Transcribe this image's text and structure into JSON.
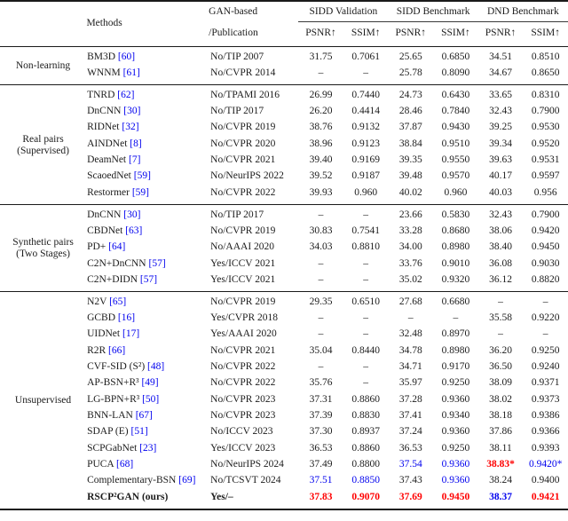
{
  "table": {
    "header": {
      "methods": "Methods",
      "gan_line1": "GAN-based",
      "gan_line2": "/Publication",
      "groups": [
        "SIDD Validation",
        "SIDD Benchmark",
        "DND Benchmark"
      ],
      "metrics": [
        "PSNR↑",
        "SSIM↑",
        "PSNR↑",
        "SSIM↑",
        "PSNR↑",
        "SSIM↑"
      ]
    },
    "colors": {
      "best_red": "#ff0000",
      "second_blue": "#0000ee",
      "citation_blue": "#0000ee"
    },
    "sections": [
      {
        "label": "Non-learning",
        "rows": [
          {
            "method": "BM3D",
            "cite": "[60]",
            "pub": "No/TIP 2007",
            "vals": [
              {
                "t": "31.75"
              },
              {
                "t": "0.7061"
              },
              {
                "t": "25.65"
              },
              {
                "t": "0.6850"
              },
              {
                "t": "34.51"
              },
              {
                "t": "0.8510"
              }
            ]
          },
          {
            "method": "WNNM",
            "cite": "[61]",
            "pub": "No/CVPR 2014",
            "vals": [
              {
                "t": "–"
              },
              {
                "t": "–"
              },
              {
                "t": "25.78"
              },
              {
                "t": "0.8090"
              },
              {
                "t": "34.67"
              },
              {
                "t": "0.8650"
              }
            ]
          }
        ]
      },
      {
        "label": "Real pairs\n(Supervised)",
        "rows": [
          {
            "method": "TNRD",
            "cite": "[62]",
            "pub": "No/TPAMI 2016",
            "vals": [
              {
                "t": "26.99"
              },
              {
                "t": "0.7440"
              },
              {
                "t": "24.73"
              },
              {
                "t": "0.6430"
              },
              {
                "t": "33.65"
              },
              {
                "t": "0.8310"
              }
            ]
          },
          {
            "method": "DnCNN",
            "cite": "[30]",
            "pub": "No/TIP 2017",
            "vals": [
              {
                "t": "26.20"
              },
              {
                "t": "0.4414"
              },
              {
                "t": "28.46"
              },
              {
                "t": "0.7840"
              },
              {
                "t": "32.43"
              },
              {
                "t": "0.7900"
              }
            ]
          },
          {
            "method": "RIDNet",
            "cite": "[32]",
            "pub": "No/CVPR 2019",
            "vals": [
              {
                "t": "38.76"
              },
              {
                "t": "0.9132"
              },
              {
                "t": "37.87"
              },
              {
                "t": "0.9430"
              },
              {
                "t": "39.25"
              },
              {
                "t": "0.9530"
              }
            ]
          },
          {
            "method": "AINDNet",
            "cite": "[8]",
            "pub": "No/CVPR 2020",
            "vals": [
              {
                "t": "38.96"
              },
              {
                "t": "0.9123"
              },
              {
                "t": "38.84"
              },
              {
                "t": "0.9510"
              },
              {
                "t": "39.34"
              },
              {
                "t": "0.9520"
              }
            ]
          },
          {
            "method": "DeamNet",
            "cite": "[7]",
            "pub": "No/CVPR 2021",
            "vals": [
              {
                "t": "39.40"
              },
              {
                "t": "0.9169"
              },
              {
                "t": "39.35"
              },
              {
                "t": "0.9550"
              },
              {
                "t": "39.63"
              },
              {
                "t": "0.9531"
              }
            ]
          },
          {
            "method": "ScaoedNet",
            "cite": "[59]",
            "pub": "No/NeurIPS 2022",
            "vals": [
              {
                "t": "39.52"
              },
              {
                "t": "0.9187"
              },
              {
                "t": "39.48"
              },
              {
                "t": "0.9570"
              },
              {
                "t": "40.17"
              },
              {
                "t": "0.9597"
              }
            ]
          },
          {
            "method": "Restormer",
            "cite": "[59]",
            "pub": "No/CVPR 2022",
            "vals": [
              {
                "t": "39.93"
              },
              {
                "t": "0.960"
              },
              {
                "t": "40.02"
              },
              {
                "t": "0.960"
              },
              {
                "t": "40.03"
              },
              {
                "t": "0.956"
              }
            ]
          }
        ]
      },
      {
        "label": "Synthetic pairs\n(Two Stages)",
        "rows": [
          {
            "method": "DnCNN",
            "cite": "[30]",
            "pub": "No/TIP 2017",
            "vals": [
              {
                "t": "–"
              },
              {
                "t": "–"
              },
              {
                "t": "23.66"
              },
              {
                "t": "0.5830"
              },
              {
                "t": "32.43"
              },
              {
                "t": "0.7900"
              }
            ]
          },
          {
            "method": "CBDNet",
            "cite": "[63]",
            "pub": "No/CVPR 2019",
            "vals": [
              {
                "t": "30.83"
              },
              {
                "t": "0.7541"
              },
              {
                "t": "33.28"
              },
              {
                "t": "0.8680"
              },
              {
                "t": "38.06"
              },
              {
                "t": "0.9420"
              }
            ]
          },
          {
            "method": "PD+",
            "cite": "[64]",
            "pub": "No/AAAI 2020",
            "vals": [
              {
                "t": "34.03"
              },
              {
                "t": "0.8810"
              },
              {
                "t": "34.00"
              },
              {
                "t": "0.8980"
              },
              {
                "t": "38.40"
              },
              {
                "t": "0.9450"
              }
            ]
          },
          {
            "method": "C2N+DnCNN",
            "cite": "[57]",
            "pub": "Yes/ICCV 2021",
            "vals": [
              {
                "t": "–"
              },
              {
                "t": "–"
              },
              {
                "t": "33.76"
              },
              {
                "t": "0.9010"
              },
              {
                "t": "36.08"
              },
              {
                "t": "0.9030"
              }
            ]
          },
          {
            "method": "C2N+DIDN",
            "cite": "[57]",
            "pub": "Yes/ICCV 2021",
            "vals": [
              {
                "t": "–"
              },
              {
                "t": "–"
              },
              {
                "t": "35.02"
              },
              {
                "t": "0.9320"
              },
              {
                "t": "36.12"
              },
              {
                "t": "0.8820"
              }
            ]
          }
        ]
      },
      {
        "label": "Unsupervised",
        "rows": [
          {
            "method": "N2V",
            "cite": "[65]",
            "pub": "No/CVPR 2019",
            "vals": [
              {
                "t": "29.35"
              },
              {
                "t": "0.6510"
              },
              {
                "t": "27.68"
              },
              {
                "t": "0.6680"
              },
              {
                "t": "–"
              },
              {
                "t": "–"
              }
            ]
          },
          {
            "method": "GCBD",
            "cite": "[16]",
            "pub": "Yes/CVPR 2018",
            "vals": [
              {
                "t": "–"
              },
              {
                "t": "–"
              },
              {
                "t": "–"
              },
              {
                "t": "–"
              },
              {
                "t": "35.58"
              },
              {
                "t": "0.9220"
              }
            ]
          },
          {
            "method": "UIDNet",
            "cite": "[17]",
            "pub": "Yes/AAAI 2020",
            "vals": [
              {
                "t": "–"
              },
              {
                "t": "–"
              },
              {
                "t": "32.48"
              },
              {
                "t": "0.8970"
              },
              {
                "t": "–"
              },
              {
                "t": "–"
              }
            ]
          },
          {
            "method": "R2R",
            "cite": "[66]",
            "pub": "No/CVPR 2021",
            "vals": [
              {
                "t": "35.04"
              },
              {
                "t": "0.8440"
              },
              {
                "t": "34.78"
              },
              {
                "t": "0.8980"
              },
              {
                "t": "36.20"
              },
              {
                "t": "0.9250"
              }
            ]
          },
          {
            "method": "CVF-SID (S²)",
            "cite": "[48]",
            "pub": "No/CVPR 2022",
            "vals": [
              {
                "t": "–"
              },
              {
                "t": "–"
              },
              {
                "t": "34.71"
              },
              {
                "t": "0.9170"
              },
              {
                "t": "36.50"
              },
              {
                "t": "0.9240"
              }
            ]
          },
          {
            "method": "AP-BSN+R³",
            "cite": "[49]",
            "pub": "No/CVPR 2022",
            "vals": [
              {
                "t": "35.76"
              },
              {
                "t": "–"
              },
              {
                "t": "35.97"
              },
              {
                "t": "0.9250"
              },
              {
                "t": "38.09"
              },
              {
                "t": "0.9371"
              }
            ]
          },
          {
            "method": "LG-BPN+R³",
            "cite": "[50]",
            "pub": "No/CVPR 2023",
            "vals": [
              {
                "t": "37.31"
              },
              {
                "t": "0.8860"
              },
              {
                "t": "37.28"
              },
              {
                "t": "0.9360"
              },
              {
                "t": "38.02"
              },
              {
                "t": "0.9373"
              }
            ]
          },
          {
            "method": "BNN-LAN",
            "cite": "[67]",
            "pub": "No/CVPR 2023",
            "vals": [
              {
                "t": "37.39"
              },
              {
                "t": "0.8830"
              },
              {
                "t": "37.41"
              },
              {
                "t": "0.9340"
              },
              {
                "t": "38.18"
              },
              {
                "t": "0.9386"
              }
            ]
          },
          {
            "method": "SDAP (E)",
            "cite": "[51]",
            "pub": "No/ICCV 2023",
            "vals": [
              {
                "t": "37.30"
              },
              {
                "t": "0.8937"
              },
              {
                "t": "37.24"
              },
              {
                "t": "0.9360"
              },
              {
                "t": "37.86"
              },
              {
                "t": "0.9366"
              }
            ]
          },
          {
            "method": "SCPGabNet",
            "cite": "[23]",
            "pub": "Yes/ICCV 2023",
            "vals": [
              {
                "t": "36.53"
              },
              {
                "t": "0.8860"
              },
              {
                "t": "36.53"
              },
              {
                "t": "0.9250"
              },
              {
                "t": "38.11"
              },
              {
                "t": "0.9393"
              }
            ]
          },
          {
            "method": "PUCA",
            "cite": "[68]",
            "pub": "No/NeurIPS 2024",
            "vals": [
              {
                "t": "37.49"
              },
              {
                "t": "0.8800"
              },
              {
                "t": "37.54",
                "c": "blue"
              },
              {
                "t": "0.9360",
                "c": "blue"
              },
              {
                "t": "38.83*",
                "c": "red",
                "b": true
              },
              {
                "t": "0.9420*",
                "c": "blue"
              }
            ]
          },
          {
            "method": "Complementary-BSN",
            "cite": "[69]",
            "pub": "No/TCSVT 2024",
            "vals": [
              {
                "t": "37.51",
                "c": "blue"
              },
              {
                "t": "0.8850",
                "c": "blue"
              },
              {
                "t": "37.43"
              },
              {
                "t": "0.9360",
                "c": "blue"
              },
              {
                "t": "38.24"
              },
              {
                "t": "0.9400"
              }
            ]
          },
          {
            "method": "RSCP²GAN (ours)",
            "cite": "",
            "pub": "Yes/–",
            "bold": true,
            "vals": [
              {
                "t": "37.83",
                "c": "red",
                "b": true
              },
              {
                "t": "0.9070",
                "c": "red",
                "b": true
              },
              {
                "t": "37.69",
                "c": "red",
                "b": true
              },
              {
                "t": "0.9450",
                "c": "red",
                "b": true
              },
              {
                "t": "38.37",
                "c": "blue",
                "b": true
              },
              {
                "t": "0.9421",
                "c": "red",
                "b": true
              }
            ]
          }
        ]
      }
    ]
  }
}
